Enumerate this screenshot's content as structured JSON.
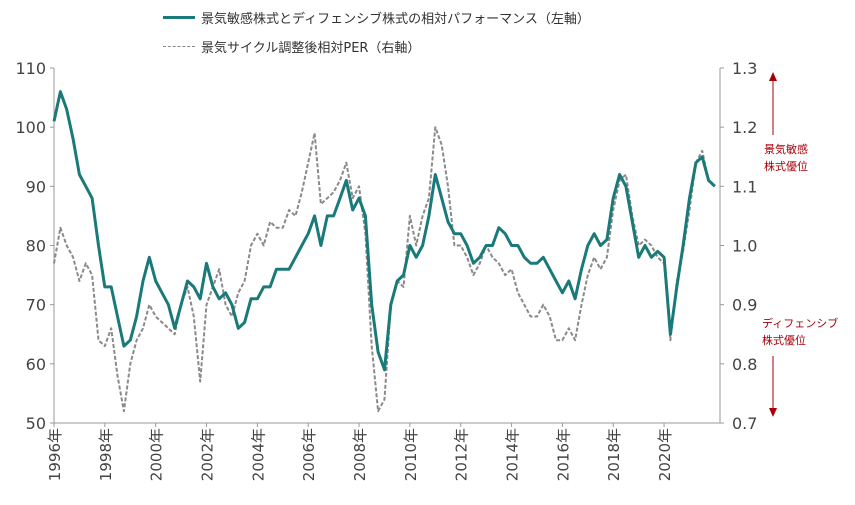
{
  "legend": {
    "series1": "景気敏感株式とディフェンシブ株式の相対パフォーマンス（左軸）",
    "series2": "景気サイクル調整後相対PER（右軸）"
  },
  "annotations": {
    "top_line1": "景気敏感",
    "top_line2": "株式優位",
    "bottom_line1": "ディフェンシブ",
    "bottom_line2": "株式優位"
  },
  "colors": {
    "series1": "#1a7a7a",
    "series2": "#8a8a8a",
    "annotation": "#a4000a"
  },
  "chart_data": {
    "type": "line",
    "x_unit": "year",
    "xlim": [
      1996,
      2022.2
    ],
    "x_ticks": [
      1996,
      1998,
      2000,
      2002,
      2004,
      2006,
      2008,
      2010,
      2012,
      2014,
      2016,
      2018,
      2020
    ],
    "x_tick_labels": [
      "1996年",
      "1998年",
      "2000年",
      "2002年",
      "2004年",
      "2006年",
      "2008年",
      "2010年",
      "2012年",
      "2014年",
      "2016年",
      "2018年",
      "2020年"
    ],
    "y_left": {
      "lim": [
        50,
        110
      ],
      "ticks": [
        "50",
        "60",
        "70",
        "80",
        "90",
        "100",
        "110"
      ]
    },
    "y_right": {
      "lim": [
        0.7,
        1.3
      ],
      "ticks": [
        "0.7",
        "0.8",
        "0.9",
        "1.0",
        "1.1",
        "1.2",
        "1.3"
      ]
    },
    "grid": false,
    "legend_position": "top",
    "series": [
      {
        "name": "景気敏感株式とディフェンシブ株式の相対パフォーマンス（左軸）",
        "axis": "left",
        "style": "solid",
        "points": [
          [
            1996.0,
            101
          ],
          [
            1996.25,
            106
          ],
          [
            1996.5,
            103
          ],
          [
            1996.75,
            98
          ],
          [
            1997.0,
            92
          ],
          [
            1997.25,
            90
          ],
          [
            1997.5,
            88
          ],
          [
            1997.75,
            80
          ],
          [
            1998.0,
            73
          ],
          [
            1998.25,
            73
          ],
          [
            1998.5,
            68
          ],
          [
            1998.75,
            63
          ],
          [
            1999.0,
            64
          ],
          [
            1999.25,
            68
          ],
          [
            1999.5,
            74
          ],
          [
            1999.75,
            78
          ],
          [
            2000.0,
            74
          ],
          [
            2000.25,
            72
          ],
          [
            2000.5,
            70
          ],
          [
            2000.75,
            66
          ],
          [
            2001.0,
            70
          ],
          [
            2001.25,
            74
          ],
          [
            2001.5,
            73
          ],
          [
            2001.75,
            71
          ],
          [
            2002.0,
            77
          ],
          [
            2002.25,
            73
          ],
          [
            2002.5,
            71
          ],
          [
            2002.75,
            72
          ],
          [
            2003.0,
            70
          ],
          [
            2003.25,
            66
          ],
          [
            2003.5,
            67
          ],
          [
            2003.75,
            71
          ],
          [
            2004.0,
            71
          ],
          [
            2004.25,
            73
          ],
          [
            2004.5,
            73
          ],
          [
            2004.75,
            76
          ],
          [
            2005.0,
            76
          ],
          [
            2005.25,
            76
          ],
          [
            2005.5,
            78
          ],
          [
            2005.75,
            80
          ],
          [
            2006.0,
            82
          ],
          [
            2006.25,
            85
          ],
          [
            2006.5,
            80
          ],
          [
            2006.75,
            85
          ],
          [
            2007.0,
            85
          ],
          [
            2007.25,
            88
          ],
          [
            2007.5,
            91
          ],
          [
            2007.75,
            86
          ],
          [
            2008.0,
            88
          ],
          [
            2008.25,
            85
          ],
          [
            2008.5,
            70
          ],
          [
            2008.75,
            62
          ],
          [
            2009.0,
            59
          ],
          [
            2009.25,
            70
          ],
          [
            2009.5,
            74
          ],
          [
            2009.75,
            75
          ],
          [
            2010.0,
            80
          ],
          [
            2010.25,
            78
          ],
          [
            2010.5,
            80
          ],
          [
            2010.75,
            85
          ],
          [
            2011.0,
            92
          ],
          [
            2011.25,
            88
          ],
          [
            2011.5,
            84
          ],
          [
            2011.75,
            82
          ],
          [
            2012.0,
            82
          ],
          [
            2012.25,
            80
          ],
          [
            2012.5,
            77
          ],
          [
            2012.75,
            78
          ],
          [
            2013.0,
            80
          ],
          [
            2013.25,
            80
          ],
          [
            2013.5,
            83
          ],
          [
            2013.75,
            82
          ],
          [
            2014.0,
            80
          ],
          [
            2014.25,
            80
          ],
          [
            2014.5,
            78
          ],
          [
            2014.75,
            77
          ],
          [
            2015.0,
            77
          ],
          [
            2015.25,
            78
          ],
          [
            2015.5,
            76
          ],
          [
            2015.75,
            74
          ],
          [
            2016.0,
            72
          ],
          [
            2016.25,
            74
          ],
          [
            2016.5,
            71
          ],
          [
            2016.75,
            76
          ],
          [
            2017.0,
            80
          ],
          [
            2017.25,
            82
          ],
          [
            2017.5,
            80
          ],
          [
            2017.75,
            81
          ],
          [
            2018.0,
            88
          ],
          [
            2018.25,
            92
          ],
          [
            2018.5,
            90
          ],
          [
            2018.75,
            84
          ],
          [
            2019.0,
            78
          ],
          [
            2019.25,
            80
          ],
          [
            2019.5,
            78
          ],
          [
            2019.75,
            79
          ],
          [
            2020.0,
            78
          ],
          [
            2020.25,
            65
          ],
          [
            2020.5,
            73
          ],
          [
            2020.75,
            80
          ],
          [
            2021.0,
            88
          ],
          [
            2021.25,
            94
          ],
          [
            2021.5,
            95
          ],
          [
            2021.75,
            91
          ],
          [
            2022.0,
            90
          ]
        ]
      },
      {
        "name": "景気サイクル調整後相対PER（右軸）",
        "axis": "right",
        "style": "dashed",
        "points": [
          [
            1996.0,
            0.97
          ],
          [
            1996.25,
            1.03
          ],
          [
            1996.5,
            1.0
          ],
          [
            1996.75,
            0.98
          ],
          [
            1997.0,
            0.94
          ],
          [
            1997.25,
            0.97
          ],
          [
            1997.5,
            0.95
          ],
          [
            1997.75,
            0.84
          ],
          [
            1998.0,
            0.83
          ],
          [
            1998.25,
            0.86
          ],
          [
            1998.5,
            0.78
          ],
          [
            1998.75,
            0.72
          ],
          [
            1999.0,
            0.8
          ],
          [
            1999.25,
            0.84
          ],
          [
            1999.5,
            0.86
          ],
          [
            1999.75,
            0.9
          ],
          [
            2000.0,
            0.88
          ],
          [
            2000.25,
            0.87
          ],
          [
            2000.5,
            0.86
          ],
          [
            2000.75,
            0.85
          ],
          [
            2001.0,
            0.9
          ],
          [
            2001.25,
            0.93
          ],
          [
            2001.5,
            0.88
          ],
          [
            2001.75,
            0.77
          ],
          [
            2002.0,
            0.9
          ],
          [
            2002.25,
            0.93
          ],
          [
            2002.5,
            0.96
          ],
          [
            2002.75,
            0.9
          ],
          [
            2003.0,
            0.88
          ],
          [
            2003.25,
            0.92
          ],
          [
            2003.5,
            0.94
          ],
          [
            2003.75,
            1.0
          ],
          [
            2004.0,
            1.02
          ],
          [
            2004.25,
            1.0
          ],
          [
            2004.5,
            1.04
          ],
          [
            2004.75,
            1.03
          ],
          [
            2005.0,
            1.03
          ],
          [
            2005.25,
            1.06
          ],
          [
            2005.5,
            1.05
          ],
          [
            2005.75,
            1.09
          ],
          [
            2006.0,
            1.14
          ],
          [
            2006.25,
            1.19
          ],
          [
            2006.5,
            1.07
          ],
          [
            2006.75,
            1.08
          ],
          [
            2007.0,
            1.09
          ],
          [
            2007.25,
            1.11
          ],
          [
            2007.5,
            1.14
          ],
          [
            2007.75,
            1.08
          ],
          [
            2008.0,
            1.1
          ],
          [
            2008.25,
            1.02
          ],
          [
            2008.5,
            0.83
          ],
          [
            2008.75,
            0.72
          ],
          [
            2009.0,
            0.74
          ],
          [
            2009.25,
            0.9
          ],
          [
            2009.5,
            0.94
          ],
          [
            2009.75,
            0.93
          ],
          [
            2010.0,
            1.05
          ],
          [
            2010.25,
            1.0
          ],
          [
            2010.5,
            1.05
          ],
          [
            2010.75,
            1.08
          ],
          [
            2011.0,
            1.2
          ],
          [
            2011.25,
            1.17
          ],
          [
            2011.5,
            1.1
          ],
          [
            2011.75,
            1.0
          ],
          [
            2012.0,
            1.0
          ],
          [
            2012.25,
            0.98
          ],
          [
            2012.5,
            0.95
          ],
          [
            2012.75,
            0.97
          ],
          [
            2013.0,
            1.0
          ],
          [
            2013.25,
            0.98
          ],
          [
            2013.5,
            0.97
          ],
          [
            2013.75,
            0.95
          ],
          [
            2014.0,
            0.96
          ],
          [
            2014.25,
            0.92
          ],
          [
            2014.5,
            0.9
          ],
          [
            2014.75,
            0.88
          ],
          [
            2015.0,
            0.88
          ],
          [
            2015.25,
            0.9
          ],
          [
            2015.5,
            0.88
          ],
          [
            2015.75,
            0.84
          ],
          [
            2016.0,
            0.84
          ],
          [
            2016.25,
            0.86
          ],
          [
            2016.5,
            0.84
          ],
          [
            2016.75,
            0.9
          ],
          [
            2017.0,
            0.95
          ],
          [
            2017.25,
            0.98
          ],
          [
            2017.5,
            0.96
          ],
          [
            2017.75,
            0.98
          ],
          [
            2018.0,
            1.06
          ],
          [
            2018.25,
            1.11
          ],
          [
            2018.5,
            1.12
          ],
          [
            2018.75,
            1.05
          ],
          [
            2019.0,
            1.0
          ],
          [
            2019.25,
            1.01
          ],
          [
            2019.5,
            1.0
          ],
          [
            2019.75,
            0.98
          ],
          [
            2020.0,
            0.97
          ],
          [
            2020.25,
            0.84
          ],
          [
            2020.5,
            0.94
          ],
          [
            2020.75,
            0.99
          ],
          [
            2021.0,
            1.06
          ],
          [
            2021.25,
            1.14
          ],
          [
            2021.5,
            1.16
          ],
          [
            2021.75,
            1.11
          ],
          [
            2022.0,
            1.1
          ]
        ]
      }
    ]
  }
}
